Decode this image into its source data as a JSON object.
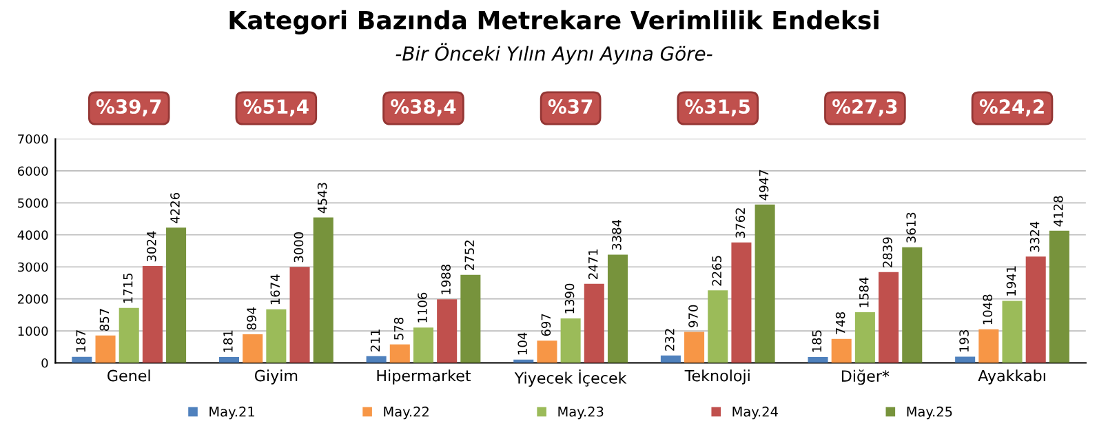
{
  "chart_data": {
    "type": "bar",
    "title": "Kategori Bazında Metrekare Verimlilik Endeksi",
    "subtitle": "-Bir Önceki Yılın Aynı Ayına Göre-",
    "categories": [
      "Genel",
      "Giyim",
      "Hipermarket",
      "Yiyecek İçecek",
      "Teknoloji",
      "Diğer*",
      "Ayakkabı"
    ],
    "series": [
      {
        "name": "May.21",
        "color": "#4f81bd",
        "values": [
          187,
          181,
          211,
          104,
          232,
          185,
          193
        ]
      },
      {
        "name": "May.22",
        "color": "#f79646",
        "values": [
          857,
          894,
          578,
          697,
          970,
          748,
          1048
        ]
      },
      {
        "name": "May.23",
        "color": "#9bbb59",
        "values": [
          1715,
          1674,
          1106,
          1390,
          2265,
          1584,
          1941
        ]
      },
      {
        "name": "May.24",
        "color": "#c0504d",
        "values": [
          3024,
          3000,
          1988,
          2471,
          3762,
          2839,
          3324
        ]
      },
      {
        "name": "May.25",
        "color": "#77933c",
        "values": [
          4226,
          4543,
          2752,
          3384,
          4947,
          3613,
          4128
        ]
      }
    ],
    "annotations": [
      "%39,7",
      "%51,4",
      "%38,4",
      "%37",
      "%31,5",
      "%27,3",
      "%24,2"
    ],
    "ylim": [
      0,
      7000
    ],
    "yticks": [
      0,
      1000,
      2000,
      3000,
      4000,
      5000,
      6000,
      7000
    ],
    "grid": "y",
    "legend": "bottom",
    "data_labels": true
  }
}
